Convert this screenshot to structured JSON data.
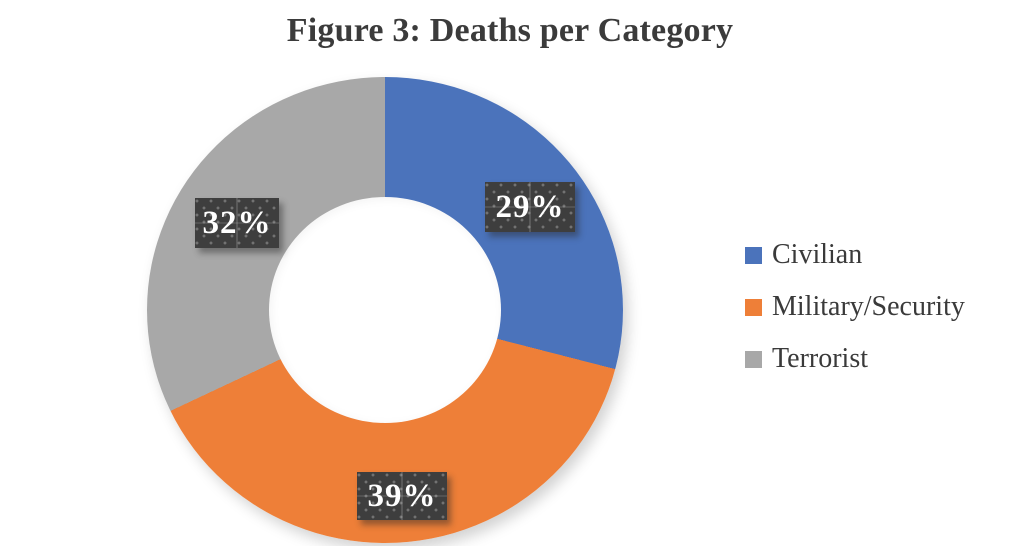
{
  "chart_data": {
    "type": "pie",
    "subtype": "doughnut",
    "title": "Figure 3: Deaths per Category",
    "start_angle_deg": 0,
    "direction": "clockwise",
    "hole_ratio": 0.48,
    "slices": [
      {
        "name": "Civilian",
        "value_pct": 29,
        "label": "29%",
        "color": "#4B73BB"
      },
      {
        "name": "Military/Security",
        "value_pct": 39,
        "label": "39%",
        "color": "#EE7F38"
      },
      {
        "name": "Terrorist",
        "value_pct": 32,
        "label": "32%",
        "color": "#A8A8A8"
      }
    ],
    "legend_position": "right",
    "data_labels": {
      "background": "#3E3E3E",
      "text_color": "#FFFFFF",
      "pattern": "dotted-grid"
    }
  }
}
